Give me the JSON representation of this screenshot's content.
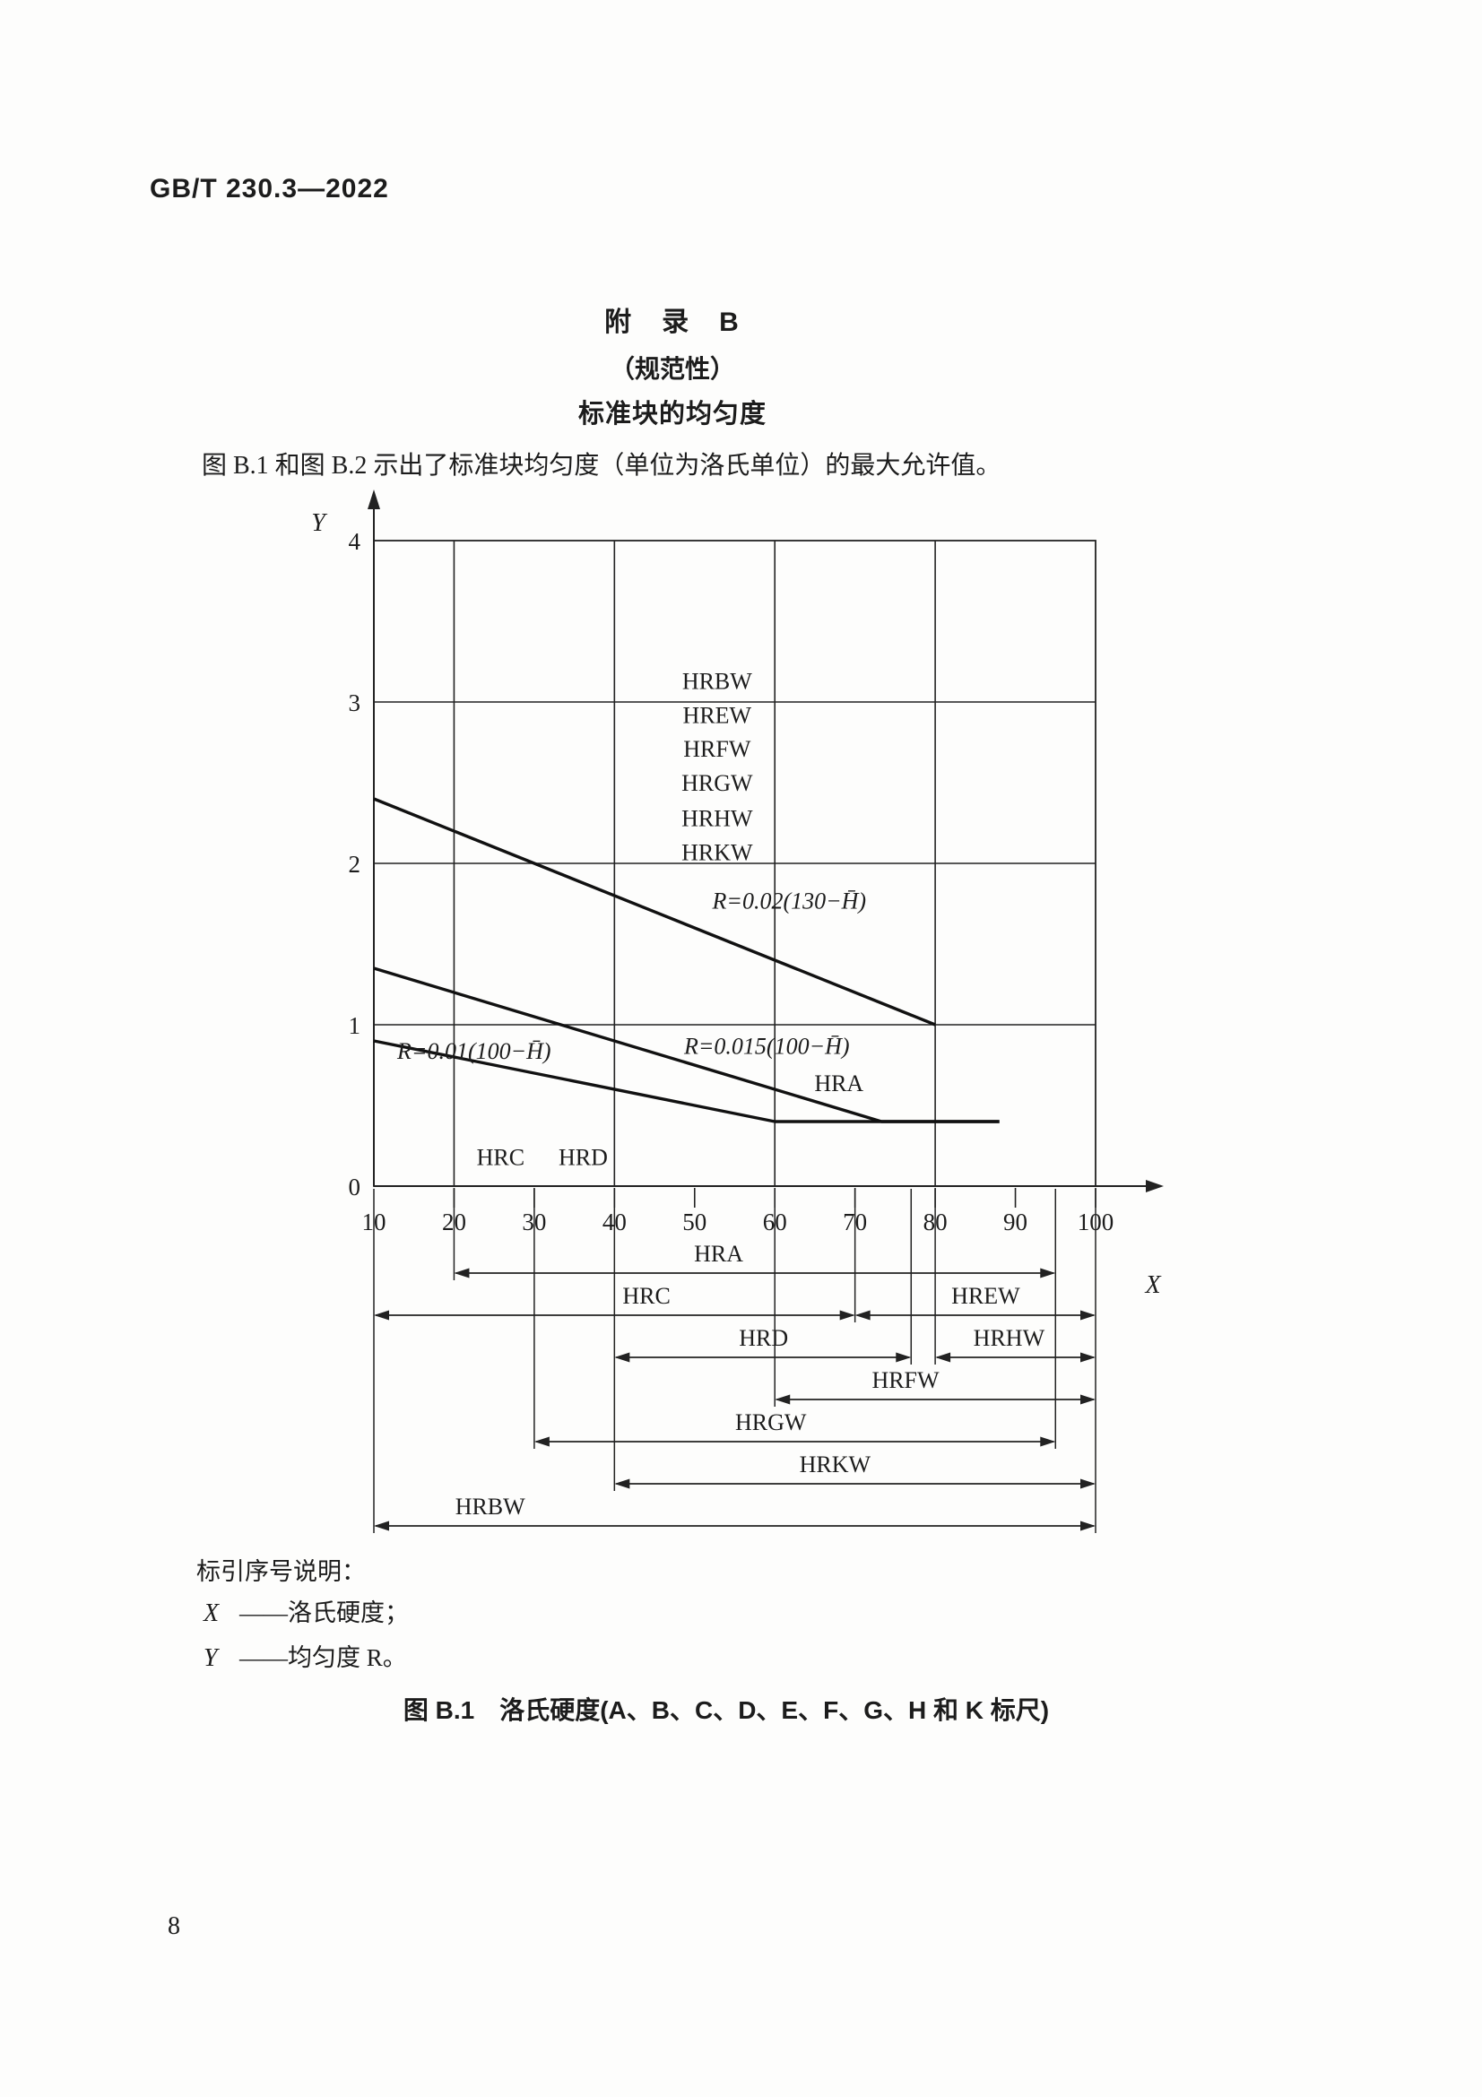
{
  "page": {
    "header": "GB/T 230.3—2022",
    "appendix": {
      "line1": "附　录　B",
      "line2": "（规范性）",
      "line3": "标准块的均匀度"
    },
    "intro": "图 B.1 和图 B.2 示出了标准块均匀度（单位为洛氏单位）的最大允许值。",
    "legend": {
      "heading": "标引序号说明：",
      "items": [
        {
          "symbol": "X",
          "desc": "——洛氏硬度；"
        },
        {
          "symbol": "Y",
          "desc": "——均匀度 R。"
        }
      ]
    },
    "caption": "图 B.1　洛氏硬度(A、B、C、D、E、F、G、H 和 K 标尺)",
    "page_number": "8"
  },
  "chart_data": {
    "type": "line",
    "title": "图 B.1 洛氏硬度(A、B、C、D、E、F、G、H 和 K 标尺)",
    "xlabel": "X（洛氏硬度）",
    "ylabel": "Y（均匀度 R）",
    "xlim": [
      10,
      100
    ],
    "ylim": [
      0,
      4
    ],
    "x_ticks": [
      "10",
      "20",
      "30",
      "40",
      "50",
      "60",
      "70",
      "80",
      "90",
      "100"
    ],
    "x_tick_values": [
      10,
      20,
      30,
      40,
      50,
      60,
      70,
      80,
      90,
      100
    ],
    "y_ticks": [
      "0",
      "1",
      "2",
      "3",
      "4"
    ],
    "y_tick_values": [
      0,
      1,
      2,
      3,
      4
    ],
    "axis_letters": {
      "x": "X",
      "y": "Y"
    },
    "grid": {
      "vertical_at": [
        20,
        40,
        60,
        80
      ],
      "horizontal_at": [
        1,
        2,
        3
      ]
    },
    "series": [
      {
        "name": "R=0.02(130−H̄)",
        "applies_to": [
          "HRBW",
          "HREW",
          "HRFW",
          "HRGW",
          "HRHW",
          "HRKW"
        ],
        "points": [
          [
            10,
            2.4
          ],
          [
            80,
            1.0
          ]
        ]
      },
      {
        "name": "R=0.015(100−H̄)",
        "applies_to": [
          "HRA"
        ],
        "points": [
          [
            10,
            1.35
          ],
          [
            73.3,
            0.4
          ],
          [
            88,
            0.4
          ]
        ]
      },
      {
        "name": "R=0.01(100−H̄)",
        "applies_to": [
          "HRC",
          "HRD"
        ],
        "points": [
          [
            10,
            0.9
          ],
          [
            60,
            0.4
          ],
          [
            88,
            0.4
          ]
        ]
      }
    ],
    "annotations": [
      {
        "text": "HRBW",
        "h": 52.8,
        "r": 3.13,
        "style": "scale"
      },
      {
        "text": "HREW",
        "h": 52.8,
        "r": 2.92,
        "style": "scale"
      },
      {
        "text": "HRFW",
        "h": 52.8,
        "r": 2.71,
        "style": "scale"
      },
      {
        "text": "HRGW",
        "h": 52.8,
        "r": 2.5,
        "style": "scale"
      },
      {
        "text": "HRHW",
        "h": 52.8,
        "r": 2.28,
        "style": "scale"
      },
      {
        "text": "HRKW",
        "h": 52.8,
        "r": 2.07,
        "style": "scale"
      },
      {
        "text": "R=0.02(130−H̄)",
        "h": 61.8,
        "r": 1.77,
        "style": "formula"
      },
      {
        "text": "R=0.015(100−H̄)",
        "h": 59.0,
        "r": 0.87,
        "style": "formula"
      },
      {
        "text": "HRA",
        "h": 68.0,
        "r": 0.64,
        "style": "scale"
      },
      {
        "text": "R=0.01(100−H̄)",
        "h": 22.5,
        "r": 0.84,
        "style": "formula"
      },
      {
        "text": "HRC",
        "h": 25.8,
        "r": 0.18,
        "style": "scale"
      },
      {
        "text": "HRD",
        "h": 36.1,
        "r": 0.18,
        "style": "scale"
      }
    ],
    "scale_ranges_rows": [
      {
        "spans": [
          {
            "label": "HRA",
            "from": 20,
            "to": 95,
            "label_at": 53.0
          }
        ]
      },
      {
        "spans": [
          {
            "label": "HRC",
            "from": 10,
            "to": 70,
            "label_at": 44.0
          },
          {
            "label": "HREW",
            "from": 70,
            "to": 100,
            "label_at": 86.3
          }
        ]
      },
      {
        "spans": [
          {
            "label": "HRD",
            "from": 40,
            "to": 77,
            "label_at": 58.6
          },
          {
            "label": "HRHW",
            "from": 80,
            "to": 100,
            "label_at": 89.2
          }
        ]
      },
      {
        "spans": [
          {
            "label": "HRFW",
            "from": 60,
            "to": 100,
            "label_at": 76.3
          }
        ]
      },
      {
        "spans": [
          {
            "label": "HRGW",
            "from": 30,
            "to": 95,
            "label_at": 59.5
          }
        ]
      },
      {
        "spans": [
          {
            "label": "HRKW",
            "from": 40,
            "to": 100,
            "label_at": 67.5
          }
        ]
      },
      {
        "spans": [
          {
            "label": "HRBW",
            "from": 10,
            "to": 100,
            "label_at": 24.5
          }
        ]
      }
    ]
  }
}
